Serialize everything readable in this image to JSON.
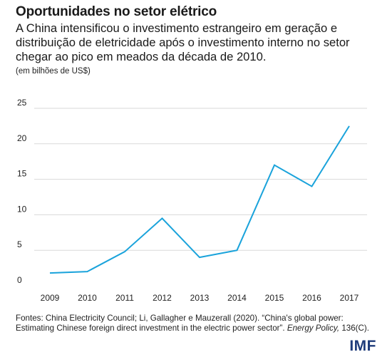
{
  "header": {
    "title": "Oportunidades no setor elétrico",
    "subtitle": "A China intensificou o investimento estrangeiro em geração e distribuição de eletricidade após o investimento interno no setor chegar ao pico em meados da década de 2010.",
    "unit": "(em bilhões de US$)"
  },
  "chart_data": {
    "type": "line",
    "title": "",
    "xlabel": "",
    "ylabel": "",
    "x": [
      2009,
      2010,
      2011,
      2012,
      2013,
      2014,
      2015,
      2016,
      2017
    ],
    "series": [
      {
        "values": [
          1.8,
          2.0,
          4.8,
          9.5,
          4.0,
          5.0,
          17.0,
          14.0,
          22.5
        ]
      }
    ],
    "ylim": [
      0,
      25
    ],
    "yticks": [
      0,
      5,
      10,
      15,
      20,
      25
    ],
    "grid": true,
    "line_color": "#1aa3db",
    "grid_color": "#d9d9d9"
  },
  "footer": {
    "source_main": "Fontes: China Electricity Council;  Li, Gallagher e Mauzerall (2020). “China's global power: Estimating Chinese foreign direct investment in the electric power sector”.",
    "source_journal": "Energy Policy,",
    "source_tail": "136(C).",
    "logo": "IMF"
  }
}
